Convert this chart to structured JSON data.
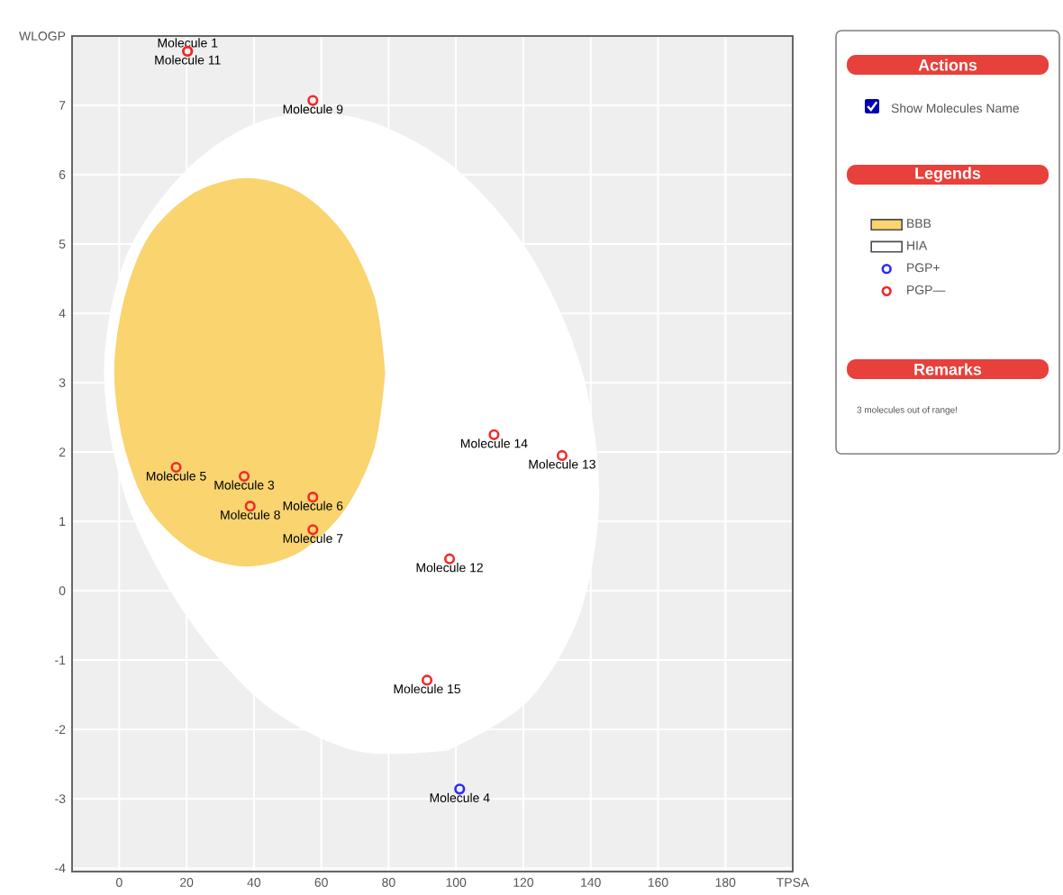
{
  "chart_data": {
    "type": "scatter",
    "xlabel": "TPSA",
    "ylabel": "WLOGP",
    "legend_title": "Legends",
    "xlim": [
      -14,
      200
    ],
    "ylim": [
      -4.05,
      8
    ],
    "xticks": [
      0,
      20,
      40,
      60,
      80,
      100,
      120,
      140,
      160,
      180
    ],
    "yticks": [
      -4,
      -3,
      -2,
      -1,
      0,
      1,
      2,
      3,
      4,
      5,
      6,
      7
    ],
    "grid": true,
    "legend": "right",
    "annotations": [
      "Actions",
      "Show Molecules Name",
      "Remarks",
      "3 molecules out of range!"
    ],
    "series": [
      {
        "name": "BBB",
        "type": "area",
        "color": "#f9d46f",
        "x": [
          79,
          75.9,
          67,
          53.7,
          38,
          22.3,
          9,
          1.5,
          -1.5,
          1.5,
          9,
          22.3,
          38,
          53.7,
          67,
          75.9
        ],
        "values": [
          3.15,
          4.22,
          5.13,
          5.74,
          5.95,
          5.74,
          5.13,
          4.22,
          3.15,
          2.08,
          1.17,
          0.56,
          0.35,
          0.56,
          1.17,
          2.08
        ]
      },
      {
        "name": "HIA",
        "type": "area",
        "color": "#ffffff",
        "x": [
          97.8,
          121.2,
          136.9,
          142.5,
          137.4,
          122,
          98.8,
          71.5,
          44,
          20.6,
          2,
          -4.5,
          2,
          19.8,
          43,
          70.3
        ],
        "values": [
          -2.3,
          -1.6,
          -0.32,
          1.36,
          3.18,
          4.85,
          6.13,
          6.81,
          6.8,
          6.1,
          4.82,
          3.14,
          1.32,
          -0.35,
          -1.63,
          -2.31
        ]
      },
      {
        "name": "PGP+",
        "marker": "circle",
        "color": "#2a2aff",
        "x": [
          101.1
        ],
        "values": [
          -2.86
        ],
        "value_labels": [
          "Molecule 4"
        ]
      },
      {
        "name": "PGP—",
        "marker": "circle",
        "color": "#ee2b2b",
        "x": [
          20.3,
          37.1,
          16.9,
          57.5,
          57.5,
          38.9,
          57.5,
          20.3,
          98.1,
          131.5,
          111.3,
          91.4
        ],
        "values": [
          7.78,
          1.65,
          1.78,
          1.35,
          0.88,
          1.22,
          7.07,
          7.78,
          0.46,
          1.95,
          2.25,
          -1.29
        ],
        "value_labels": [
          "Molecule 1",
          "Molecule 3",
          "Molecule 5",
          "Molecule 6",
          "Molecule 7",
          "Molecule 8",
          "Molecule 9",
          "Molecule 11",
          "Molecule 12",
          "Molecule 13",
          "Molecule 14",
          "Molecule 15"
        ]
      }
    ]
  }
}
